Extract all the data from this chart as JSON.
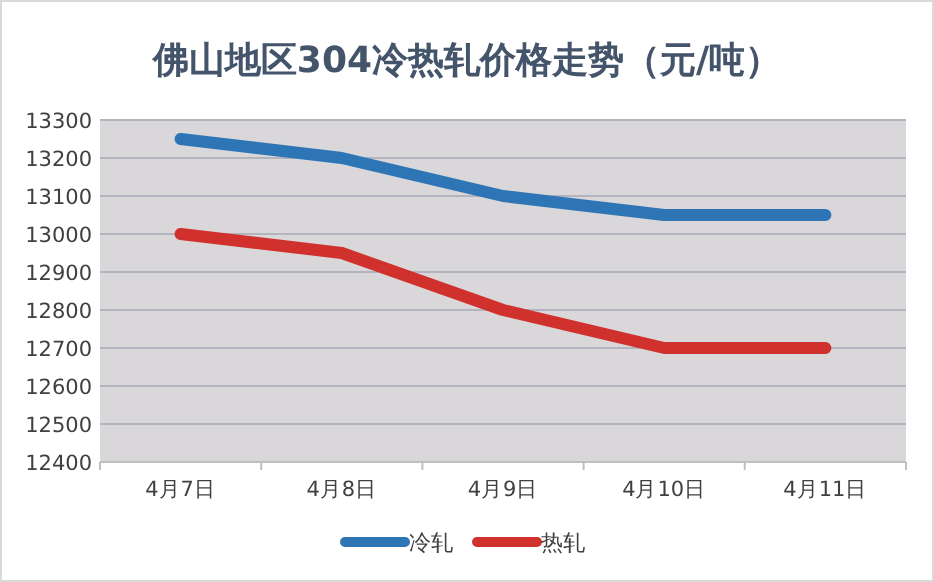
{
  "chart_data": {
    "type": "line",
    "title": "佛山地区304冷热轧价格走势（元/吨）",
    "categories": [
      "4月7日",
      "4月8日",
      "4月9日",
      "4月10日",
      "4月11日"
    ],
    "series": [
      {
        "name": "冷轧",
        "color": "#2e75b6",
        "values": [
          13250,
          13200,
          13100,
          13050,
          13050
        ]
      },
      {
        "name": "热轧",
        "color": "#d0312d",
        "values": [
          13000,
          12950,
          12800,
          12700,
          12700
        ]
      }
    ],
    "ylim": [
      12400,
      13300
    ],
    "yticks": [
      12400,
      12500,
      12600,
      12700,
      12800,
      12900,
      13000,
      13100,
      13200,
      13300
    ],
    "grid": "y",
    "legend": "bottom",
    "marker": "none",
    "line_style": "solid"
  }
}
